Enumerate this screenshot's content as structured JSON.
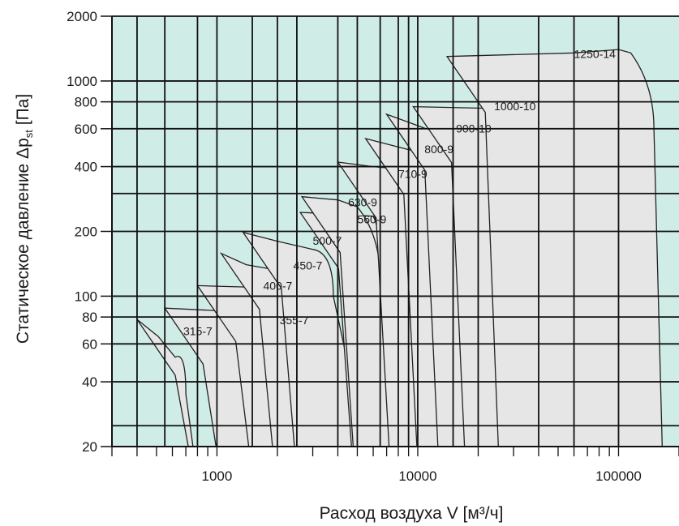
{
  "chart_data": {
    "type": "area",
    "x_scale": "log",
    "y_scale": "log",
    "xlim": [
      300,
      200000
    ],
    "ylim": [
      20,
      2000
    ],
    "xlabel": "Расход воздуха V [м³/ч]",
    "ylabel": "Статическое давление Δp",
    "ylabel_sub": "st",
    "ylabel_unit": " [Па]",
    "x_tick_labels": [
      "1000",
      "10000",
      "100000"
    ],
    "x_ticks": [
      1000,
      10000,
      100000
    ],
    "y_tick_labels": [
      "20",
      "40",
      "60",
      "80",
      "100",
      "200",
      "400",
      "600",
      "800",
      "1000",
      "2000"
    ],
    "y_ticks": [
      20,
      40,
      60,
      80,
      100,
      200,
      400,
      600,
      800,
      1000,
      2000
    ],
    "x_grid": [
      400,
      550,
      800,
      1000,
      1500,
      2000,
      2500,
      4000,
      5000,
      6500,
      8000,
      9000,
      10000,
      15000,
      20000,
      40000,
      60000,
      100000
    ],
    "y_grid": [
      20,
      25,
      40,
      60,
      80,
      100,
      200,
      300,
      400,
      600,
      800,
      1000,
      2000
    ],
    "grid": true,
    "colors": {
      "plot_bg": "#cfece6",
      "envelope_fill": "#e6e6e6",
      "envelope_stroke": "#222222",
      "grid": "#111111"
    },
    "series": [
      {
        "name": "315-7",
        "top": [
          [
            400,
            78
          ],
          [
            510,
            65
          ],
          [
            620,
            52
          ]
        ],
        "knee": [
          700,
          35
        ],
        "right": [
          760,
          20
        ]
      },
      {
        "name": "355-7",
        "top": [
          [
            550,
            88
          ],
          [
            1200,
            85
          ],
          [
            1500,
            80
          ]
        ],
        "knee": [
          1880,
          48
        ],
        "right": [
          2150,
          20
        ]
      },
      {
        "name": "400-7",
        "top": [
          [
            800,
            112
          ],
          [
            1500,
            110
          ],
          [
            1800,
            108
          ]
        ],
        "knee": [
          2450,
          60
        ],
        "right": [
          3300,
          20
        ]
      },
      {
        "name": "450-7",
        "top": [
          [
            1050,
            158
          ],
          [
            1400,
            140
          ],
          [
            2000,
            132
          ]
        ],
        "knee": [
          3100,
          80
        ],
        "right": [
          4500,
          20
        ]
      },
      {
        "name": "500-7",
        "top": [
          [
            1350,
            198
          ],
          [
            2000,
            180
          ],
          [
            3000,
            165
          ]
        ],
        "knee": [
          3800,
          100
        ],
        "right": [
          5500,
          20
        ]
      },
      {
        "name": "560-9",
        "top": [
          [
            2600,
            245
          ],
          [
            4500,
            240
          ],
          [
            6000,
            235
          ]
        ],
        "knee": [
          6500,
          130
        ],
        "right": [
          8800,
          20
        ]
      },
      {
        "name": "630-9",
        "top": [
          [
            2650,
            290
          ],
          [
            4000,
            280
          ],
          [
            5000,
            260
          ]
        ],
        "knee": [
          6500,
          120
        ],
        "right": [
          9000,
          20
        ]
      },
      {
        "name": "710-9",
        "top": [
          [
            4000,
            420
          ],
          [
            6000,
            400
          ],
          [
            9500,
            385
          ]
        ],
        "knee": [
          11500,
          180
        ],
        "right": [
          19000,
          20
        ]
      },
      {
        "name": "800-9",
        "top": [
          [
            5500,
            540
          ],
          [
            9000,
            480
          ],
          [
            13500,
            440
          ]
        ],
        "knee": [
          15500,
          220
        ],
        "right": [
          20000,
          20
        ]
      },
      {
        "name": "900-10",
        "top": [
          [
            7000,
            700
          ],
          [
            11000,
            600
          ],
          [
            18000,
            560
          ]
        ],
        "knee": [
          20000,
          270
        ],
        "right": [
          28000,
          20
        ]
      },
      {
        "name": "1000-10",
        "top": [
          [
            9500,
            760
          ],
          [
            18000,
            750
          ],
          [
            33000,
            740
          ]
        ],
        "knee": [
          40000,
          330
        ],
        "right": [
          55000,
          20
        ]
      },
      {
        "name": "1250-14",
        "top": [
          [
            14000,
            1300
          ],
          [
            60000,
            1350
          ],
          [
            100000,
            1400
          ],
          [
            115000,
            1350
          ]
        ],
        "knee": [
          150000,
          600
        ],
        "right": [
          165000,
          20
        ]
      }
    ],
    "labels": [
      {
        "name": "315-7",
        "x": 680,
        "y": 66
      },
      {
        "name": "355-7",
        "x": 2050,
        "y": 74
      },
      {
        "name": "400-7",
        "x": 1700,
        "y": 107
      },
      {
        "name": "450-7",
        "x": 2400,
        "y": 133
      },
      {
        "name": "500-7",
        "x": 3000,
        "y": 173
      },
      {
        "name": "560-9",
        "x": 5000,
        "y": 218
      },
      {
        "name": "630-9",
        "x": 4500,
        "y": 262
      },
      {
        "name": "710-9",
        "x": 8000,
        "y": 355
      },
      {
        "name": "800-9",
        "x": 10800,
        "y": 462
      },
      {
        "name": "900-10",
        "x": 15500,
        "y": 575
      },
      {
        "name": "1000-10",
        "x": 24000,
        "y": 732
      },
      {
        "name": "1250-14",
        "x": 60000,
        "y": 1280
      }
    ]
  }
}
